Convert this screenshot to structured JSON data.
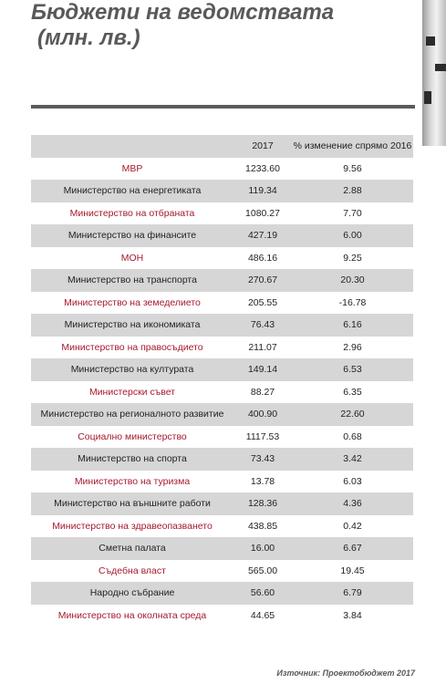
{
  "title": {
    "line1": "Бюджети на ведомствата",
    "line2": "(млн. лв.)"
  },
  "table": {
    "headers": [
      "",
      "2017",
      "% изменение спрямо 2016"
    ],
    "rows": [
      {
        "dept": "МВР",
        "v2017": "1233.60",
        "change": "9.56",
        "color": "red"
      },
      {
        "dept": "Министерство на енергетиката",
        "v2017": "119.34",
        "change": "2.88",
        "color": "black"
      },
      {
        "dept": "Министерство на отбраната",
        "v2017": "1080.27",
        "change": "7.70",
        "color": "red"
      },
      {
        "dept": "Министерство на финансите",
        "v2017": "427.19",
        "change": "6.00",
        "color": "black"
      },
      {
        "dept": "МОН",
        "v2017": "486.16",
        "change": "9.25",
        "color": "red"
      },
      {
        "dept": "Министерство на транспорта",
        "v2017": "270.67",
        "change": "20.30",
        "color": "black"
      },
      {
        "dept": "Министерство на земеделието",
        "v2017": "205.55",
        "change": "-16.78",
        "color": "red"
      },
      {
        "dept": "Министерство на икономиката",
        "v2017": "76.43",
        "change": "6.16",
        "color": "black"
      },
      {
        "dept": "Министерство на правосъдието",
        "v2017": "211.07",
        "change": "2.96",
        "color": "red"
      },
      {
        "dept": "Министерство на културата",
        "v2017": "149.14",
        "change": "6.53",
        "color": "black"
      },
      {
        "dept": "Министерски съвет",
        "v2017": "88.27",
        "change": "6.35",
        "color": "red"
      },
      {
        "dept": "Министерство на регионалното развитие",
        "v2017": "400.90",
        "change": "22.60",
        "color": "black"
      },
      {
        "dept": "Социално министерство",
        "v2017": "1117.53",
        "change": "0.68",
        "color": "red"
      },
      {
        "dept": "Министерство на спорта",
        "v2017": "73.43",
        "change": "3.42",
        "color": "black"
      },
      {
        "dept": "Министерство на туризма",
        "v2017": "13.78",
        "change": "6.03",
        "color": "red"
      },
      {
        "dept": "Министерство на външните работи",
        "v2017": "128.36",
        "change": "4.36",
        "color": "black"
      },
      {
        "dept": "Министерство на здравеопазването",
        "v2017": "438.85",
        "change": "0.42",
        "color": "red"
      },
      {
        "dept": "Сметна палата",
        "v2017": "16.00",
        "change": "6.67",
        "color": "black"
      },
      {
        "dept": "Съдебна власт",
        "v2017": "565.00",
        "change": "19.45",
        "color": "red"
      },
      {
        "dept": "Народно събрание",
        "v2017": "56.60",
        "change": "6.79",
        "color": "black"
      },
      {
        "dept": "Министерство на околната среда",
        "v2017": "44.65",
        "change": "3.84",
        "color": "red"
      }
    ]
  },
  "source": "Източник: Проектобюджет 2017",
  "colors": {
    "title": "#58595b",
    "red_text": "#a6192e",
    "row_shade": "#d6d6d6",
    "rule": "#5b5b5b"
  }
}
